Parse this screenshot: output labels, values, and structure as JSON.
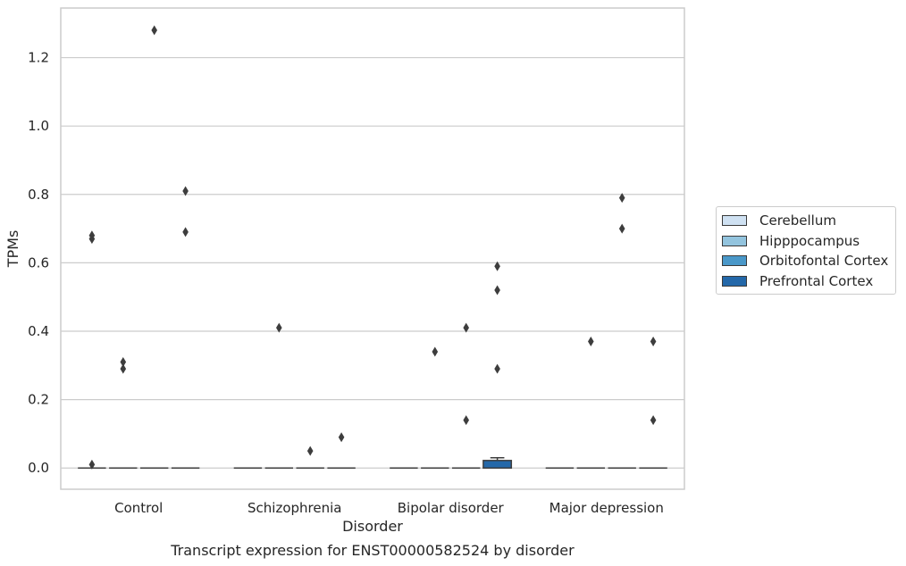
{
  "chart_data": {
    "type": "box",
    "title": "Transcript expression for ENST00000582524 by disorder",
    "xlabel": "Disorder",
    "ylabel": "TPMs",
    "ylim": [
      -0.062,
      1.345
    ],
    "yticks": [
      0.0,
      0.2,
      0.4,
      0.6,
      0.8,
      1.0,
      1.2
    ],
    "ytick_labels": [
      "0.0",
      "0.2",
      "0.4",
      "0.6",
      "0.8",
      "1.0",
      "1.2"
    ],
    "categories": [
      "Control",
      "Schizophrenia",
      "Bipolar disorder",
      "Major depression"
    ],
    "grid": "horizontal",
    "legend_position": "right",
    "series": [
      {
        "name": "Cerebellum",
        "color": "#cfe1f2",
        "boxes": [
          {
            "q1": 0,
            "median": 0,
            "q3": 0,
            "whisker_low": 0,
            "whisker_high": 0,
            "outliers": [
              0.68,
              0.67,
              0.01
            ]
          },
          {
            "q1": 0,
            "median": 0,
            "q3": 0,
            "whisker_low": 0,
            "whisker_high": 0,
            "outliers": []
          },
          {
            "q1": 0,
            "median": 0,
            "q3": 0,
            "whisker_low": 0,
            "whisker_high": 0,
            "outliers": []
          },
          {
            "q1": 0,
            "median": 0,
            "q3": 0,
            "whisker_low": 0,
            "whisker_high": 0,
            "outliers": []
          }
        ]
      },
      {
        "name": "Hipppocampus",
        "color": "#93c4de",
        "boxes": [
          {
            "q1": 0,
            "median": 0,
            "q3": 0,
            "whisker_low": 0,
            "whisker_high": 0,
            "outliers": [
              0.31,
              0.29
            ]
          },
          {
            "q1": 0,
            "median": 0,
            "q3": 0,
            "whisker_low": 0,
            "whisker_high": 0,
            "outliers": [
              0.41
            ]
          },
          {
            "q1": 0,
            "median": 0,
            "q3": 0,
            "whisker_low": 0,
            "whisker_high": 0,
            "outliers": [
              0.34
            ]
          },
          {
            "q1": 0,
            "median": 0,
            "q3": 0,
            "whisker_low": 0,
            "whisker_high": 0,
            "outliers": [
              0.37
            ]
          }
        ]
      },
      {
        "name": "Orbitofontal Cortex",
        "color": "#4a98c9",
        "boxes": [
          {
            "q1": 0,
            "median": 0,
            "q3": 0,
            "whisker_low": 0,
            "whisker_high": 0,
            "outliers": [
              1.28
            ]
          },
          {
            "q1": 0,
            "median": 0,
            "q3": 0,
            "whisker_low": 0,
            "whisker_high": 0,
            "outliers": [
              0.05
            ]
          },
          {
            "q1": 0,
            "median": 0,
            "q3": 0,
            "whisker_low": 0,
            "whisker_high": 0,
            "outliers": [
              0.41,
              0.14
            ]
          },
          {
            "q1": 0,
            "median": 0,
            "q3": 0,
            "whisker_low": 0,
            "whisker_high": 0,
            "outliers": [
              0.79,
              0.7
            ]
          }
        ]
      },
      {
        "name": "Prefrontal Cortex",
        "color": "#2468a9",
        "boxes": [
          {
            "q1": 0,
            "median": 0,
            "q3": 0,
            "whisker_low": 0,
            "whisker_high": 0,
            "outliers": [
              0.81,
              0.69
            ]
          },
          {
            "q1": 0,
            "median": 0,
            "q3": 0,
            "whisker_low": 0,
            "whisker_high": 0,
            "outliers": [
              0.09
            ]
          },
          {
            "q1": 0,
            "median": 0,
            "q3": 0.022,
            "whisker_low": 0,
            "whisker_high": 0.03,
            "outliers": [
              0.59,
              0.52,
              0.29
            ]
          },
          {
            "q1": 0,
            "median": 0,
            "q3": 0,
            "whisker_low": 0,
            "whisker_high": 0,
            "outliers": [
              0.37,
              0.14
            ]
          }
        ]
      }
    ]
  }
}
